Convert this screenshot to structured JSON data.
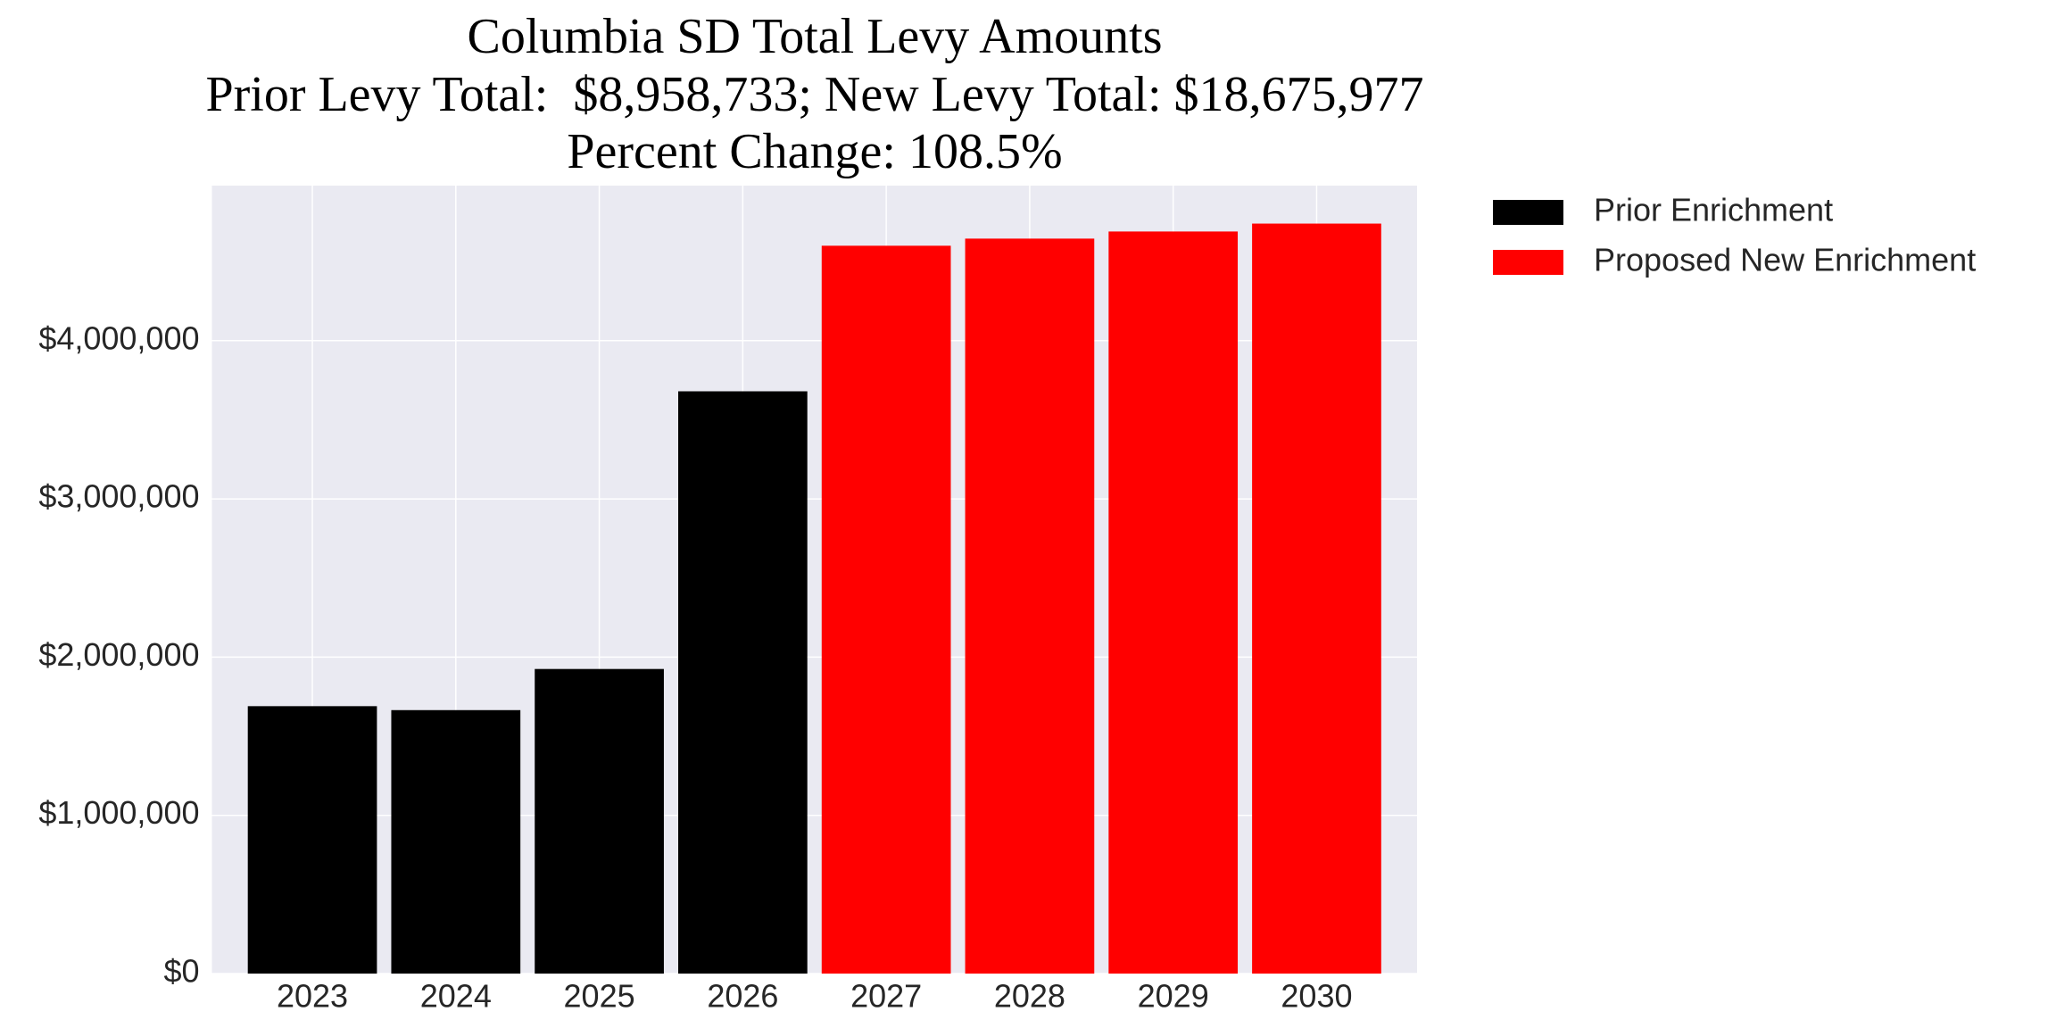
{
  "chart_data": {
    "type": "bar",
    "title": [
      "Columbia SD Total Levy Amounts",
      "Prior Levy Total:  $8,958,733; New Levy Total: $18,675,977",
      "Percent Change: 108.5%"
    ],
    "categories": [
      "2023",
      "2024",
      "2025",
      "2026",
      "2027",
      "2028",
      "2029",
      "2030"
    ],
    "series": [
      {
        "name": "Prior Enrichment",
        "color": "#000000",
        "values": [
          1690000,
          1665000,
          1925000,
          3680000,
          null,
          null,
          null,
          null
        ]
      },
      {
        "name": "Proposed New Enrichment",
        "color": "#ff0000",
        "values": [
          null,
          null,
          null,
          null,
          4600000,
          4645000,
          4690000,
          4740000
        ]
      }
    ],
    "ylim": [
      0,
      4980000
    ],
    "yticks": [
      {
        "value": 0,
        "label": "$0"
      },
      {
        "value": 1000000,
        "label": "$1,000,000"
      },
      {
        "value": 2000000,
        "label": "$2,000,000"
      },
      {
        "value": 3000000,
        "label": "$3,000,000"
      },
      {
        "value": 4000000,
        "label": "$4,000,000"
      }
    ],
    "grid": true,
    "legend": "outside upper right"
  }
}
